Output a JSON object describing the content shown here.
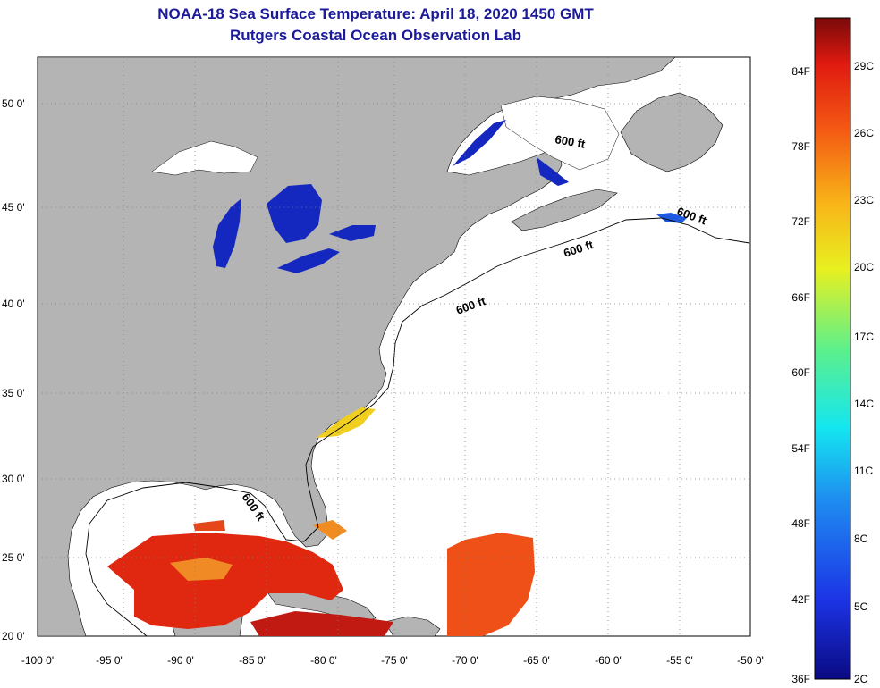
{
  "title": {
    "line1": "NOAA-18 Sea Surface Temperature:  April 18, 2020 1450 GMT",
    "line2": "Rutgers Coastal Ocean Observation Lab"
  },
  "axes": {
    "lon_ticks": [
      "-100 0'",
      "-95 0'",
      "-90 0'",
      "-85 0'",
      "-80 0'",
      "-75 0'",
      "-70 0'",
      "-65 0'",
      "-60 0'",
      "-55 0'",
      "-50 0'"
    ],
    "lat_ticks": [
      "50 0'",
      "45 0'",
      "40 0'",
      "35 0'",
      "30 0'",
      "25 0'",
      "20 0'"
    ],
    "lon_range": [
      -100,
      -50
    ],
    "lat_range": [
      20,
      52.5
    ]
  },
  "contour_labels": [
    "600 ft",
    "600 ft",
    "600 ft",
    "600 ft",
    "600 ft"
  ],
  "colorbar": {
    "fahrenheit": [
      "84F",
      "78F",
      "72F",
      "66F",
      "60F",
      "54F",
      "48F",
      "42F",
      "36F"
    ],
    "celsius": [
      "29C",
      "26C",
      "23C",
      "20C",
      "17C",
      "14C",
      "11C",
      "8C",
      "5C",
      "2C"
    ]
  },
  "colors": {
    "land": "#b4b4b4",
    "ocean_nodata": "#ffffff",
    "title": "#1a1a9a",
    "cold_lake": "#0a1fb4",
    "warm_sst": "#e02810"
  }
}
